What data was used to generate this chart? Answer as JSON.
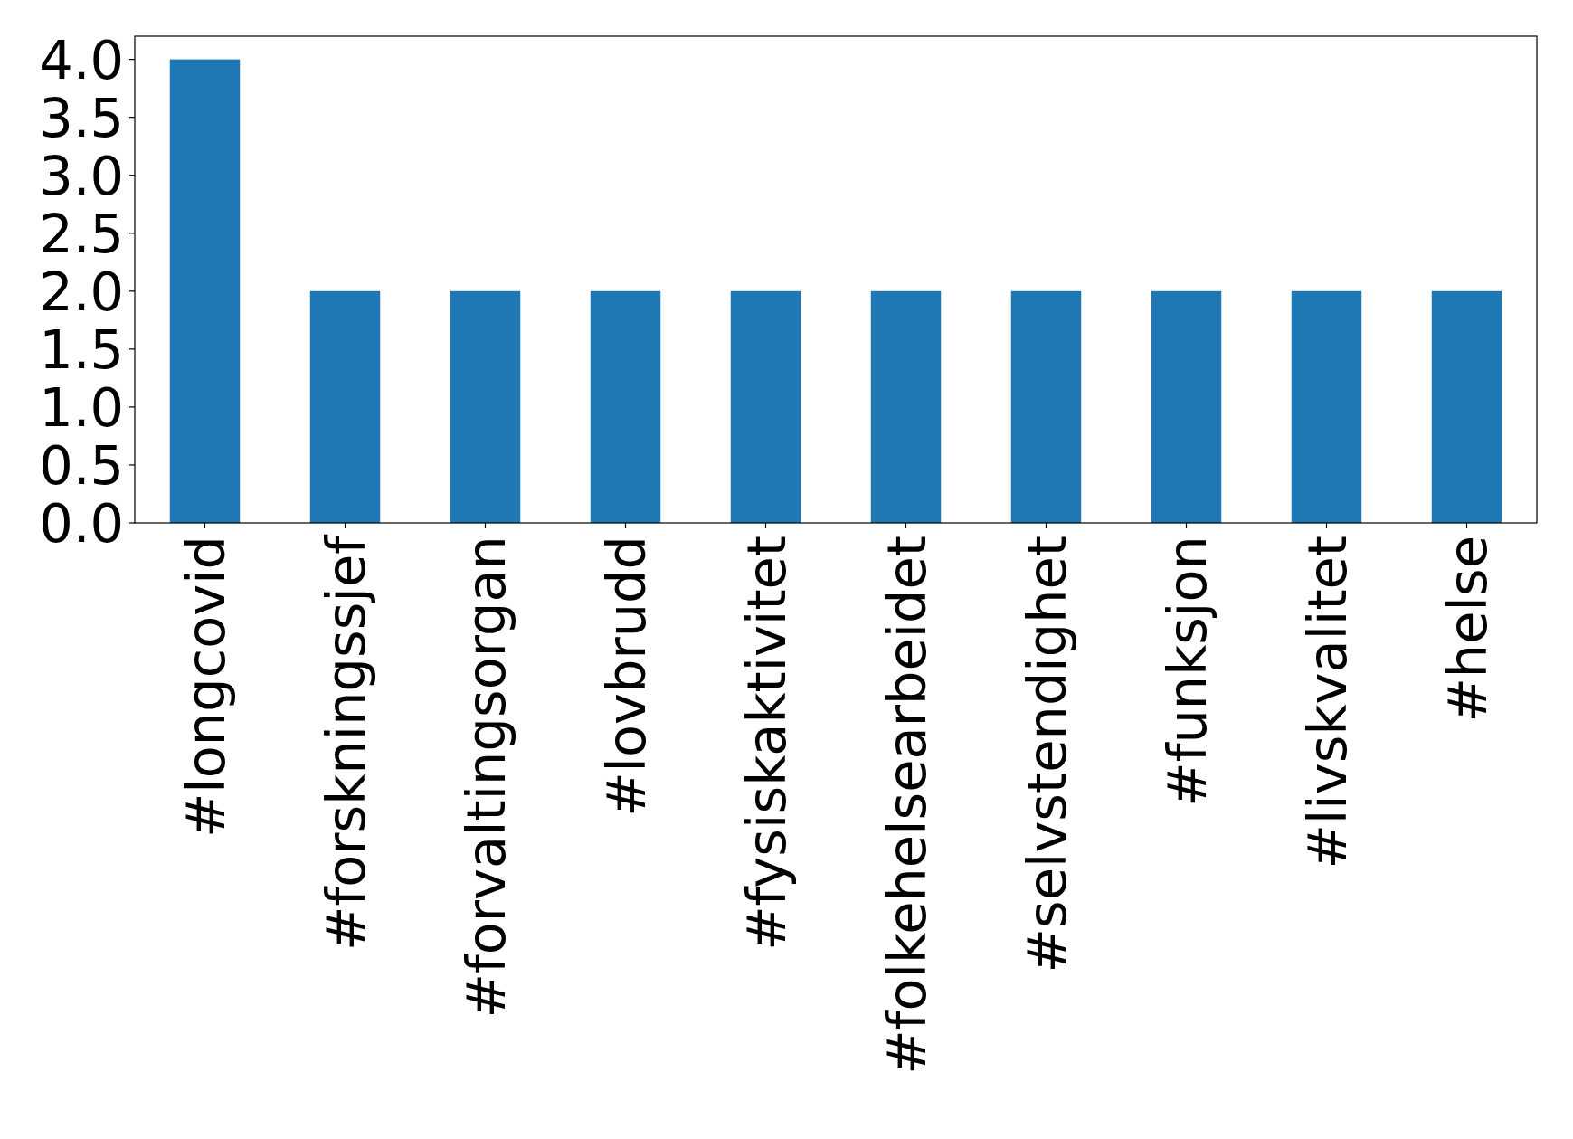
{
  "chart_data": {
    "type": "bar",
    "categories": [
      "#longcovid",
      "#forskningssjef",
      "#forvaltingsorgan",
      "#lovbrudd",
      "#fysiskaktivitet",
      "#folkehelsearbeidet",
      "#selvstendighet",
      "#funksjon",
      "#livskvalitet",
      "#helse"
    ],
    "values": [
      4,
      2,
      2,
      2,
      2,
      2,
      2,
      2,
      2,
      2
    ],
    "color": "#1f77b4",
    "ylim": [
      0,
      4.2
    ],
    "yticks": [
      {
        "value": 0,
        "label": "0.0"
      },
      {
        "value": 0.5,
        "label": "0.5"
      },
      {
        "value": 1,
        "label": "1.0"
      },
      {
        "value": 1.5,
        "label": "1.5"
      },
      {
        "value": 2,
        "label": "2.0"
      },
      {
        "value": 2.5,
        "label": "2.5"
      },
      {
        "value": 3,
        "label": "3.0"
      },
      {
        "value": 3.5,
        "label": "3.5"
      },
      {
        "value": 4,
        "label": "4.0"
      }
    ],
    "grid": false
  }
}
